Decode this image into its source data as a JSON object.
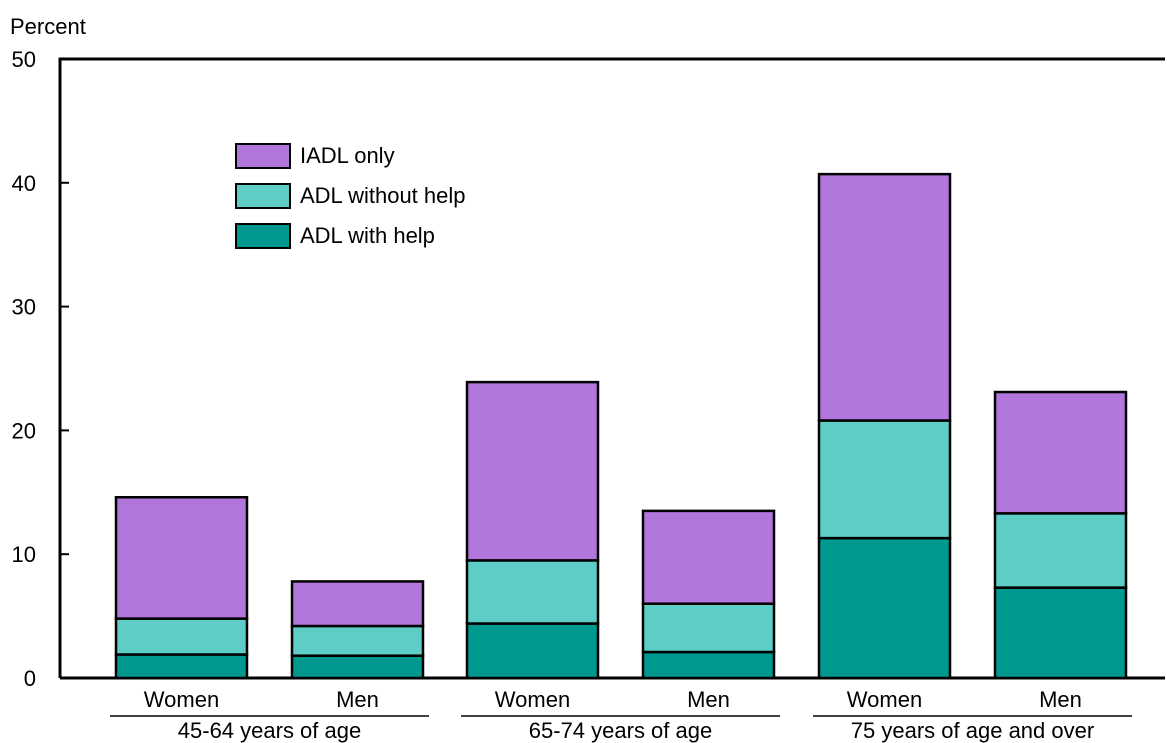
{
  "chart_data": {
    "type": "bar",
    "stacked": true,
    "ylabel": "Percent",
    "ylim": [
      0,
      50
    ],
    "yticks": [
      0,
      10,
      20,
      30,
      40,
      50
    ],
    "categories": [
      "Women",
      "Men",
      "Women",
      "Men",
      "Women",
      "Men"
    ],
    "groups": [
      {
        "label": "45-64 years of age",
        "categories": [
          "Women",
          "Men"
        ]
      },
      {
        "label": "65-74 years of age",
        "categories": [
          "Women",
          "Men"
        ]
      },
      {
        "label": "75 years of age and over",
        "categories": [
          "Women",
          "Men"
        ]
      }
    ],
    "series": [
      {
        "name": "ADL with help",
        "color": "#009990",
        "values": [
          1.9,
          1.8,
          4.4,
          2.1,
          11.3,
          7.3
        ]
      },
      {
        "name": "ADL without help",
        "color": "#5ecdc6",
        "values": [
          2.9,
          2.4,
          5.1,
          3.9,
          9.5,
          6.0
        ]
      },
      {
        "name": "IADL only",
        "color": "#b175dc",
        "values": [
          9.8,
          3.6,
          14.4,
          7.5,
          19.9,
          9.8
        ]
      }
    ],
    "legend": {
      "position": "top-left",
      "order": [
        "IADL only",
        "ADL without help",
        "ADL with help"
      ]
    },
    "grid": false
  }
}
